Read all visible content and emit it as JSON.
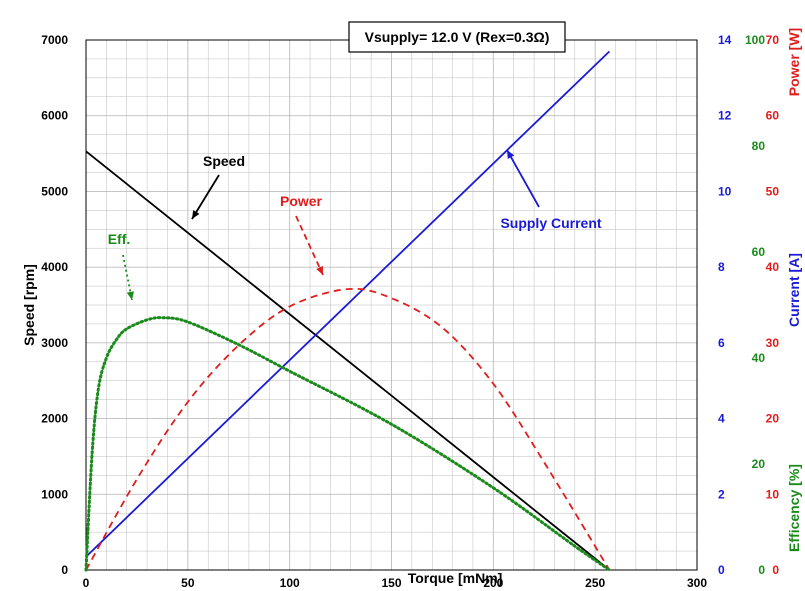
{
  "chart_data": {
    "type": "line",
    "title": "Vsupply=  12.0  V  (Rex=0.3Ω)",
    "xlabel": "Torque [mNm]",
    "ylabel": "Speed [rpm]",
    "xlim": [
      0,
      300
    ],
    "ylim": [
      0,
      7000
    ],
    "x_ticks": [
      "0",
      "50",
      "100",
      "150",
      "200",
      "250",
      "300"
    ],
    "y_ticks": [
      "0",
      "1000",
      "2000",
      "3000",
      "4000",
      "5000",
      "6000",
      "7000"
    ],
    "grid": true,
    "right_axes": [
      {
        "label": "Current [A]",
        "color": "#1a1ad6",
        "range": [
          0,
          14
        ],
        "ticks": [
          "0",
          "2",
          "4",
          "6",
          "8",
          "10",
          "12",
          "14"
        ]
      },
      {
        "label": "Efficency [%]",
        "color": "#1a8a1a",
        "range": [
          0,
          100
        ],
        "ticks": [
          "0",
          "20",
          "40",
          "60",
          "80",
          "100"
        ]
      },
      {
        "label": "Power [W]",
        "color": "#e01c1c",
        "range": [
          0,
          70
        ],
        "ticks": [
          "0",
          "10",
          "20",
          "30",
          "40",
          "50",
          "60",
          "70"
        ]
      }
    ],
    "series": [
      {
        "name": "Speed",
        "axis": "speed",
        "color": "#000000",
        "style": "solid",
        "points": [
          [
            0,
            5530
          ],
          [
            257,
            0
          ]
        ]
      },
      {
        "name": "Supply Current",
        "axis": "current",
        "color": "#1a1ad6",
        "style": "solid",
        "points": [
          [
            0,
            0.35
          ],
          [
            257,
            13.7
          ]
        ]
      },
      {
        "name": "Power",
        "axis": "power",
        "color": "#e01c1c",
        "style": "dashed",
        "points": [
          [
            0,
            0
          ],
          [
            25,
            12.0
          ],
          [
            50,
            22.2
          ],
          [
            75,
            29.7
          ],
          [
            100,
            34.8
          ],
          [
            128.5,
            37.1
          ],
          [
            150,
            35.9
          ],
          [
            175,
            32.0
          ],
          [
            200,
            24.6
          ],
          [
            225,
            14.2
          ],
          [
            257,
            0
          ]
        ]
      },
      {
        "name": "Eff.",
        "axis": "efficiency",
        "color": "#1a8a1a",
        "style": "dotted",
        "points": [
          [
            0,
            0
          ],
          [
            3,
            22
          ],
          [
            6,
            34
          ],
          [
            10,
            40
          ],
          [
            15,
            43.5
          ],
          [
            20,
            45.5
          ],
          [
            30,
            47.2
          ],
          [
            38,
            47.6
          ],
          [
            50,
            46.8
          ],
          [
            75,
            42.5
          ],
          [
            100,
            37.5
          ],
          [
            150,
            27.5
          ],
          [
            200,
            15.5
          ],
          [
            240,
            4.5
          ],
          [
            257,
            0
          ]
        ]
      }
    ],
    "annotations": [
      {
        "text": "Speed",
        "color": "#000000"
      },
      {
        "text": "Power",
        "color": "#e01c1c"
      },
      {
        "text": "Eff.",
        "color": "#1a8a1a"
      },
      {
        "text": "Supply Current",
        "color": "#1a1ad6"
      }
    ]
  }
}
